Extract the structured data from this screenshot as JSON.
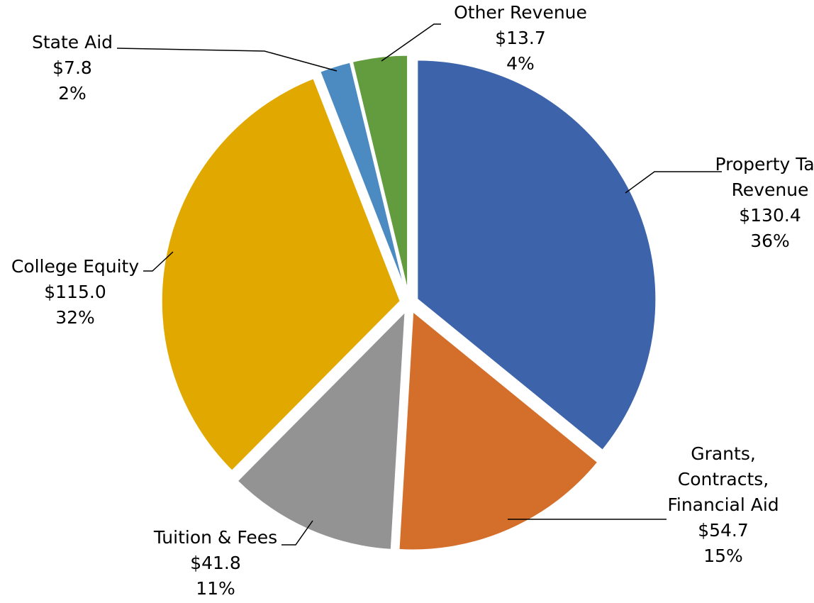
{
  "chart_data": {
    "type": "pie",
    "title": "",
    "slices": [
      {
        "label_lines": [
          "Property Tax",
          "Revenue"
        ],
        "value_text": "$130.4",
        "percent_text": "36%",
        "value": 130.4,
        "color": "#3D64AB"
      },
      {
        "label_lines": [
          "Grants,",
          "Contracts,",
          "Financial Aid"
        ],
        "value_text": "$54.7",
        "percent_text": "15%",
        "value": 54.7,
        "color": "#D46F2B"
      },
      {
        "label_lines": [
          "Tuition & Fees"
        ],
        "value_text": "$41.8",
        "percent_text": "11%",
        "value": 41.8,
        "color": "#939393"
      },
      {
        "label_lines": [
          "College Equity"
        ],
        "value_text": "$115.0",
        "percent_text": "32%",
        "value": 115.0,
        "color": "#E1A900"
      },
      {
        "label_lines": [
          "State Aid"
        ],
        "value_text": "$7.8",
        "percent_text": "2%",
        "value": 7.8,
        "color": "#4C8BC1"
      },
      {
        "label_lines": [
          "Other Revenue"
        ],
        "value_text": "$13.7",
        "percent_text": "4%",
        "value": 13.7,
        "color": "#629C3F"
      }
    ]
  }
}
